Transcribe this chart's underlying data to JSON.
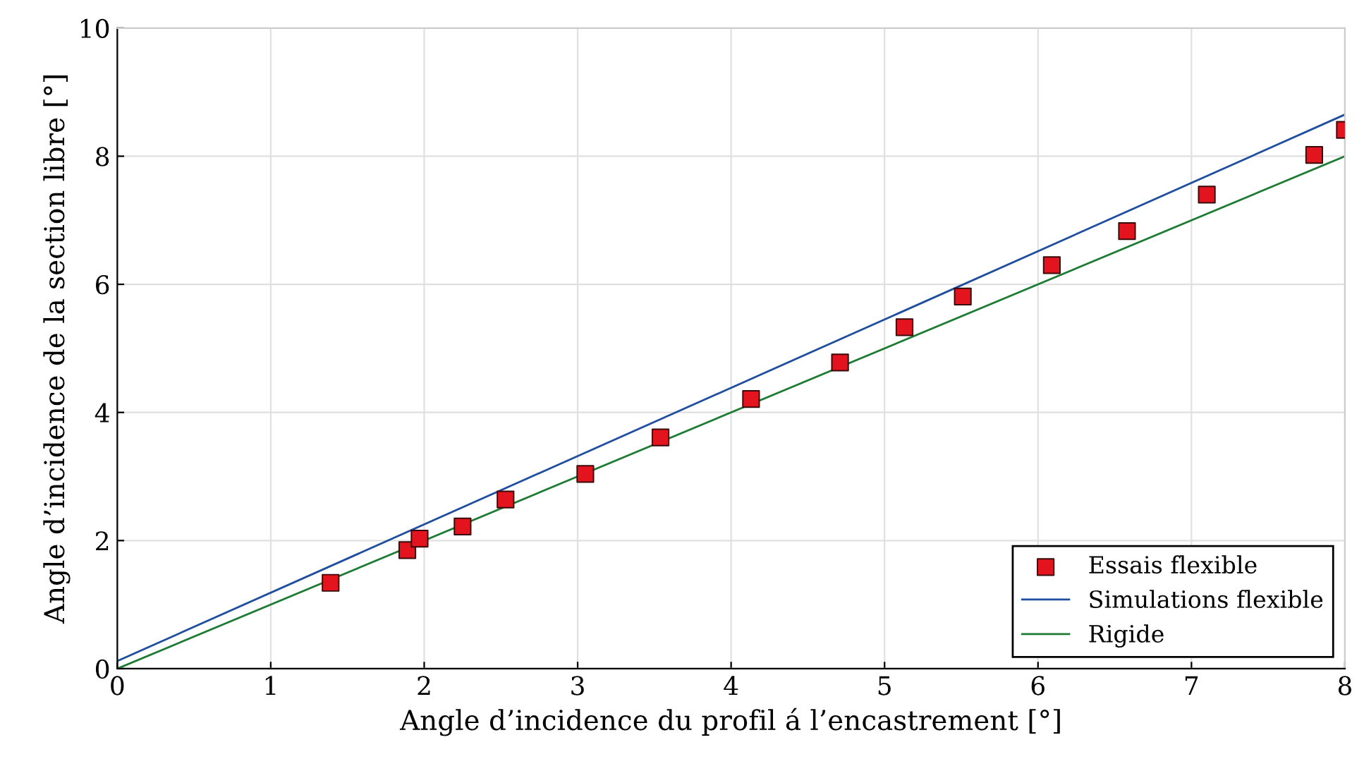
{
  "chart_data": {
    "type": "scatter",
    "xlabel": "Angle d’incidence du profil á l’encastrement [°]",
    "ylabel": "Angle d’incidence de la section libre [°]",
    "series": [
      {
        "name": "Essais flexible",
        "color": "#e3141e",
        "marker": "square",
        "x": [
          1.39,
          1.89,
          1.97,
          2.25,
          2.53,
          3.05,
          3.54,
          4.13,
          4.71,
          5.13,
          5.51,
          6.09,
          6.58,
          7.1,
          7.8,
          8.0
        ],
        "values": [
          1.34,
          1.85,
          2.03,
          2.22,
          2.64,
          3.04,
          3.61,
          4.21,
          4.78,
          5.33,
          5.81,
          6.3,
          6.83,
          7.4,
          8.02,
          8.41
        ]
      },
      {
        "name": "Simulations flexible",
        "type": "line",
        "color": "#1f4e9e",
        "line_style": "solid",
        "x": [
          0,
          8
        ],
        "values": [
          0.12,
          8.65
        ]
      },
      {
        "name": "Rigide",
        "type": "line",
        "color": "#1e7b34",
        "line_style": "solid",
        "x": [
          0,
          8
        ],
        "values": [
          0,
          8
        ]
      }
    ],
    "xlim": [
      0,
      8
    ],
    "ylim": [
      0,
      10
    ],
    "xticks": [
      0,
      1,
      2,
      3,
      4,
      5,
      6,
      7,
      8
    ],
    "yticks": [
      0,
      2,
      4,
      6,
      8,
      10
    ],
    "grid": true,
    "legend": "bottom right"
  }
}
